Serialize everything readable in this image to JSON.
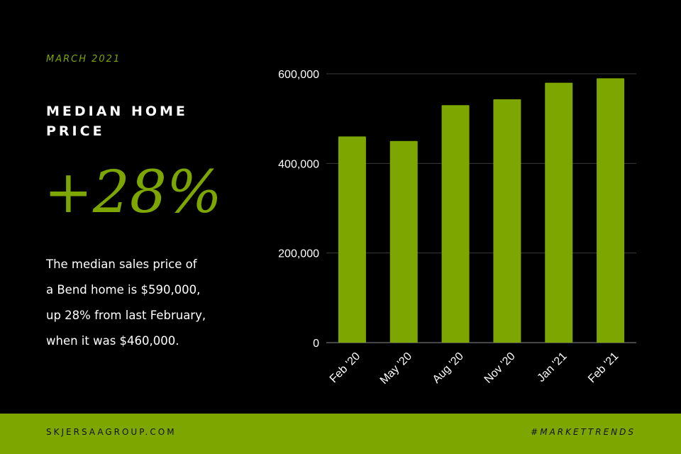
{
  "header": {
    "date_label": "MARCH 2021",
    "title_line1": "MEDIAN HOME",
    "title_line2": "PRICE",
    "headline_stat": "+28%"
  },
  "description": {
    "line1": "The median sales price of",
    "line2": "a Bend home is $590,000,",
    "line3": "up 28% from last February,",
    "line4": "when it was $460,000."
  },
  "footer": {
    "website": "SKJERSAAGROUP.COM",
    "hashtag": "#MARKETTRENDS"
  },
  "colors": {
    "accent": "#7ea600",
    "background": "#000000",
    "text": "#ffffff"
  },
  "chart_data": {
    "type": "bar",
    "categories": [
      "Feb '20",
      "May '20",
      "Aug '20",
      "Nov '20",
      "Jan '21",
      "Feb '21"
    ],
    "values": [
      460000,
      450000,
      530000,
      543000,
      580000,
      590000
    ],
    "ylim": [
      0,
      600000
    ],
    "yticks": [
      0,
      200000,
      400000,
      600000
    ],
    "ytick_labels": [
      "0",
      "200,000",
      "400,000",
      "600,000"
    ],
    "grid": true,
    "title": "",
    "xlabel": "",
    "ylabel": ""
  }
}
